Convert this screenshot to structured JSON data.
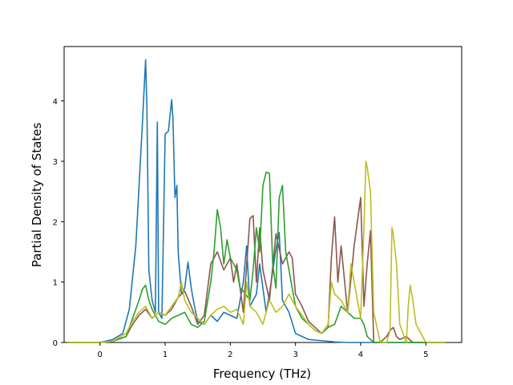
{
  "chart_data": {
    "type": "line",
    "title": "",
    "xlabel": "Frequency (THz)",
    "ylabel": "Partial Density of States",
    "xlim": [
      -0.55,
      5.55
    ],
    "ylim": [
      0,
      4.9
    ],
    "xticks": [
      0,
      1,
      2,
      3,
      4,
      5
    ],
    "yticks": [
      0,
      1,
      2,
      3,
      4
    ],
    "grid": false,
    "legend": "none",
    "series": [
      {
        "color": "#1f77b4",
        "x": [
          -0.5,
          0.0,
          0.2,
          0.35,
          0.45,
          0.55,
          0.6,
          0.65,
          0.7,
          0.72,
          0.75,
          0.8,
          0.85,
          0.88,
          0.9,
          0.95,
          1.0,
          1.05,
          1.1,
          1.12,
          1.15,
          1.18,
          1.2,
          1.25,
          1.3,
          1.35,
          1.4,
          1.45,
          1.5,
          1.6,
          1.7,
          1.8,
          1.9,
          2.0,
          2.1,
          2.2,
          2.25,
          2.3,
          2.4,
          2.45,
          2.5,
          2.55,
          2.6,
          2.7,
          2.75,
          2.8,
          2.85,
          2.9,
          3.0,
          3.1,
          3.2,
          3.3,
          3.4,
          3.5,
          3.6,
          3.8,
          4.0,
          4.2,
          4.4,
          4.6,
          4.8,
          5.0,
          5.3
        ],
        "y": [
          0.0,
          0.0,
          0.05,
          0.15,
          0.55,
          1.6,
          2.6,
          3.6,
          4.68,
          3.9,
          1.2,
          0.7,
          0.5,
          3.65,
          0.5,
          0.4,
          3.45,
          3.5,
          4.02,
          3.7,
          2.4,
          2.6,
          1.5,
          0.8,
          0.9,
          1.33,
          0.9,
          0.6,
          0.35,
          0.3,
          0.45,
          0.35,
          0.5,
          0.45,
          0.4,
          1.0,
          1.6,
          0.6,
          0.8,
          1.3,
          0.9,
          0.5,
          0.8,
          1.55,
          1.82,
          0.7,
          0.6,
          0.5,
          0.15,
          0.1,
          0.05,
          0.04,
          0.03,
          0.02,
          0.01,
          0.0,
          0.0,
          0.0,
          0.0,
          0.0,
          0.0,
          0.0,
          0.0
        ]
      },
      {
        "color": "#8c564b",
        "x": [
          -0.5,
          0.0,
          0.2,
          0.4,
          0.5,
          0.6,
          0.7,
          0.8,
          0.9,
          1.0,
          1.1,
          1.2,
          1.3,
          1.4,
          1.5,
          1.6,
          1.7,
          1.8,
          1.9,
          2.0,
          2.05,
          2.1,
          2.2,
          2.3,
          2.35,
          2.4,
          2.45,
          2.5,
          2.6,
          2.7,
          2.8,
          2.9,
          2.95,
          3.0,
          3.1,
          3.2,
          3.3,
          3.4,
          3.5,
          3.55,
          3.6,
          3.65,
          3.7,
          3.8,
          3.9,
          4.0,
          4.05,
          4.1,
          4.15,
          4.2,
          4.3,
          4.4,
          4.45,
          4.5,
          4.55,
          4.6,
          4.7,
          4.75,
          4.8,
          5.0,
          5.3
        ],
        "y": [
          0.0,
          0.0,
          0.02,
          0.1,
          0.3,
          0.45,
          0.55,
          0.4,
          0.5,
          0.45,
          0.55,
          0.75,
          0.85,
          0.6,
          0.3,
          0.45,
          1.3,
          1.5,
          1.2,
          1.4,
          1.0,
          1.3,
          0.5,
          2.05,
          2.1,
          1.0,
          1.9,
          1.2,
          0.7,
          1.8,
          1.3,
          1.5,
          1.4,
          0.8,
          0.6,
          0.35,
          0.25,
          0.15,
          0.25,
          1.4,
          2.08,
          1.0,
          1.6,
          0.5,
          1.6,
          2.4,
          0.6,
          1.3,
          1.85,
          0.0,
          0.0,
          0.1,
          0.2,
          0.25,
          0.1,
          0.05,
          0.1,
          0.05,
          0.0,
          0.0,
          0.0
        ]
      },
      {
        "color": "#2ca02c",
        "x": [
          -0.5,
          0.0,
          0.2,
          0.4,
          0.5,
          0.6,
          0.65,
          0.7,
          0.75,
          0.8,
          0.9,
          1.0,
          1.1,
          1.2,
          1.3,
          1.4,
          1.5,
          1.6,
          1.7,
          1.75,
          1.8,
          1.85,
          1.9,
          1.95,
          2.0,
          2.1,
          2.15,
          2.2,
          2.3,
          2.35,
          2.4,
          2.45,
          2.5,
          2.55,
          2.6,
          2.65,
          2.7,
          2.75,
          2.8,
          2.85,
          2.9,
          3.0,
          3.1,
          3.2,
          3.3,
          3.4,
          3.5,
          3.6,
          3.7,
          3.8,
          3.9,
          4.0,
          4.05,
          4.1,
          4.2,
          4.4,
          4.6,
          4.8,
          5.0,
          5.3
        ],
        "y": [
          0.0,
          0.0,
          0.02,
          0.1,
          0.4,
          0.7,
          0.88,
          0.95,
          0.7,
          0.55,
          0.35,
          0.3,
          0.4,
          0.45,
          0.5,
          0.3,
          0.25,
          0.35,
          1.0,
          1.5,
          2.2,
          1.9,
          1.3,
          1.7,
          1.4,
          1.2,
          0.9,
          0.85,
          0.7,
          1.2,
          1.9,
          1.5,
          2.6,
          2.82,
          2.8,
          1.3,
          0.9,
          2.4,
          2.6,
          1.5,
          1.2,
          0.6,
          0.4,
          0.3,
          0.2,
          0.15,
          0.25,
          0.3,
          0.6,
          0.5,
          0.4,
          0.4,
          0.3,
          0.1,
          0.0,
          0.0,
          0.0,
          0.0,
          0.0,
          0.0
        ]
      },
      {
        "color": "#bcbd22",
        "x": [
          -0.5,
          0.0,
          0.2,
          0.4,
          0.5,
          0.6,
          0.7,
          0.8,
          0.9,
          1.0,
          1.1,
          1.2,
          1.25,
          1.3,
          1.4,
          1.5,
          1.6,
          1.7,
          1.8,
          1.9,
          2.0,
          2.1,
          2.2,
          2.25,
          2.3,
          2.4,
          2.5,
          2.6,
          2.7,
          2.8,
          2.9,
          3.0,
          3.1,
          3.2,
          3.3,
          3.4,
          3.5,
          3.55,
          3.6,
          3.7,
          3.8,
          3.85,
          3.9,
          4.0,
          4.05,
          4.08,
          4.1,
          4.15,
          4.2,
          4.3,
          4.4,
          4.45,
          4.48,
          4.5,
          4.55,
          4.6,
          4.7,
          4.73,
          4.76,
          4.8,
          4.85,
          5.0,
          5.3
        ],
        "y": [
          0.0,
          0.0,
          0.02,
          0.15,
          0.35,
          0.5,
          0.6,
          0.4,
          0.5,
          0.45,
          0.6,
          0.75,
          1.0,
          0.7,
          0.5,
          0.4,
          0.3,
          0.45,
          0.55,
          0.6,
          0.5,
          0.55,
          0.3,
          1.0,
          0.6,
          0.5,
          0.3,
          0.7,
          0.5,
          0.6,
          0.8,
          0.6,
          0.45,
          0.3,
          0.2,
          0.15,
          0.3,
          1.0,
          0.8,
          0.7,
          0.5,
          1.3,
          1.0,
          0.4,
          1.9,
          3.0,
          2.9,
          2.5,
          0.5,
          0.0,
          0.0,
          0.2,
          1.9,
          1.8,
          1.3,
          0.3,
          0.0,
          0.6,
          0.95,
          0.7,
          0.3,
          0.0,
          0.0
        ]
      }
    ]
  }
}
